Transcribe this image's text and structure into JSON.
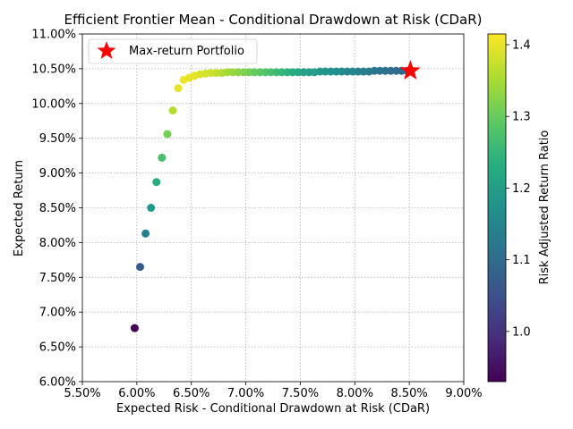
{
  "chart_data": {
    "type": "scatter",
    "title": "Efficient Frontier Mean - Conditional Drawdown at Risk (CDaR)",
    "xlabel": "Expected Risk - Conditional Drawdown at Risk (CDaR)",
    "ylabel": "Expected Return",
    "xlim": [
      0.055,
      0.09
    ],
    "ylim": [
      0.06,
      0.11
    ],
    "x_ticks": [
      0.055,
      0.06,
      0.065,
      0.07,
      0.075,
      0.08,
      0.085,
      0.09
    ],
    "x_tick_labels": [
      "5.50%",
      "6.00%",
      "6.50%",
      "7.00%",
      "7.50%",
      "8.00%",
      "8.50%",
      "9.00%"
    ],
    "y_ticks": [
      0.06,
      0.065,
      0.07,
      0.075,
      0.08,
      0.085,
      0.09,
      0.095,
      0.1,
      0.105,
      0.11
    ],
    "y_tick_labels": [
      "6.00%",
      "6.50%",
      "7.00%",
      "7.50%",
      "8.00%",
      "8.50%",
      "9.00%",
      "9.50%",
      "10.00%",
      "10.50%",
      "11.00%"
    ],
    "grid": true,
    "colormap": "viridis",
    "colorbar": {
      "label": "Risk Adjusted Return Ratio",
      "range": [
        0.93,
        1.415
      ],
      "ticks": [
        1.0,
        1.1,
        1.2,
        1.3,
        1.4
      ],
      "tick_labels": [
        "1.0",
        "1.1",
        "1.2",
        "1.3",
        "1.4"
      ]
    },
    "points": [
      {
        "x": 0.0598,
        "y": 0.0677,
        "ratio": 0.93
      },
      {
        "x": 0.0603,
        "y": 0.0765,
        "ratio": 1.07
      },
      {
        "x": 0.0608,
        "y": 0.0813,
        "ratio": 1.14
      },
      {
        "x": 0.0613,
        "y": 0.085,
        "ratio": 1.19
      },
      {
        "x": 0.0618,
        "y": 0.0887,
        "ratio": 1.23
      },
      {
        "x": 0.0623,
        "y": 0.0922,
        "ratio": 1.27
      },
      {
        "x": 0.0628,
        "y": 0.0956,
        "ratio": 1.31
      },
      {
        "x": 0.0633,
        "y": 0.099,
        "ratio": 1.36
      },
      {
        "x": 0.0638,
        "y": 0.1022,
        "ratio": 1.4
      },
      {
        "x": 0.0643,
        "y": 0.1034,
        "ratio": 1.405
      },
      {
        "x": 0.0648,
        "y": 0.1037,
        "ratio": 1.4
      },
      {
        "x": 0.0653,
        "y": 0.104,
        "ratio": 1.395
      },
      {
        "x": 0.0658,
        "y": 0.1042,
        "ratio": 1.39
      },
      {
        "x": 0.0663,
        "y": 0.1043,
        "ratio": 1.385
      },
      {
        "x": 0.0668,
        "y": 0.1044,
        "ratio": 1.38
      },
      {
        "x": 0.0673,
        "y": 0.1044,
        "ratio": 1.37
      },
      {
        "x": 0.0678,
        "y": 0.1044,
        "ratio": 1.36
      },
      {
        "x": 0.0683,
        "y": 0.1045,
        "ratio": 1.35
      },
      {
        "x": 0.0688,
        "y": 0.1045,
        "ratio": 1.34
      },
      {
        "x": 0.0693,
        "y": 0.1045,
        "ratio": 1.33
      },
      {
        "x": 0.0698,
        "y": 0.1045,
        "ratio": 1.32
      },
      {
        "x": 0.0703,
        "y": 0.1045,
        "ratio": 1.31
      },
      {
        "x": 0.0708,
        "y": 0.1045,
        "ratio": 1.3
      },
      {
        "x": 0.0713,
        "y": 0.1045,
        "ratio": 1.29
      },
      {
        "x": 0.0718,
        "y": 0.1045,
        "ratio": 1.28
      },
      {
        "x": 0.0723,
        "y": 0.1045,
        "ratio": 1.27
      },
      {
        "x": 0.0728,
        "y": 0.1045,
        "ratio": 1.26
      },
      {
        "x": 0.0733,
        "y": 0.1045,
        "ratio": 1.25
      },
      {
        "x": 0.0738,
        "y": 0.1045,
        "ratio": 1.24
      },
      {
        "x": 0.0743,
        "y": 0.1045,
        "ratio": 1.23
      },
      {
        "x": 0.0748,
        "y": 0.1045,
        "ratio": 1.22
      },
      {
        "x": 0.0753,
        "y": 0.1045,
        "ratio": 1.21
      },
      {
        "x": 0.0758,
        "y": 0.1045,
        "ratio": 1.2
      },
      {
        "x": 0.0763,
        "y": 0.1045,
        "ratio": 1.195
      },
      {
        "x": 0.0768,
        "y": 0.1046,
        "ratio": 1.19
      },
      {
        "x": 0.0773,
        "y": 0.1046,
        "ratio": 1.18
      },
      {
        "x": 0.0778,
        "y": 0.1046,
        "ratio": 1.175
      },
      {
        "x": 0.0783,
        "y": 0.1046,
        "ratio": 1.17
      },
      {
        "x": 0.0788,
        "y": 0.1046,
        "ratio": 1.16
      },
      {
        "x": 0.0793,
        "y": 0.1046,
        "ratio": 1.155
      },
      {
        "x": 0.0798,
        "y": 0.1046,
        "ratio": 1.15
      },
      {
        "x": 0.0803,
        "y": 0.1046,
        "ratio": 1.14
      },
      {
        "x": 0.0808,
        "y": 0.1046,
        "ratio": 1.135
      },
      {
        "x": 0.0813,
        "y": 0.1046,
        "ratio": 1.13
      },
      {
        "x": 0.0818,
        "y": 0.1047,
        "ratio": 1.12
      },
      {
        "x": 0.0823,
        "y": 0.1047,
        "ratio": 1.115
      },
      {
        "x": 0.0828,
        "y": 0.1047,
        "ratio": 1.11
      },
      {
        "x": 0.0833,
        "y": 0.1047,
        "ratio": 1.105
      },
      {
        "x": 0.0838,
        "y": 0.1047,
        "ratio": 1.1
      },
      {
        "x": 0.0843,
        "y": 0.1047,
        "ratio": 1.095
      },
      {
        "x": 0.0848,
        "y": 0.1047,
        "ratio": 1.09
      }
    ],
    "highlight": {
      "label": "Max-return Portfolio",
      "x": 0.0851,
      "y": 0.1047,
      "marker": "star",
      "color": "#ff0000"
    },
    "legend": {
      "location": "upper left",
      "entries": [
        "Max-return Portfolio"
      ]
    }
  }
}
